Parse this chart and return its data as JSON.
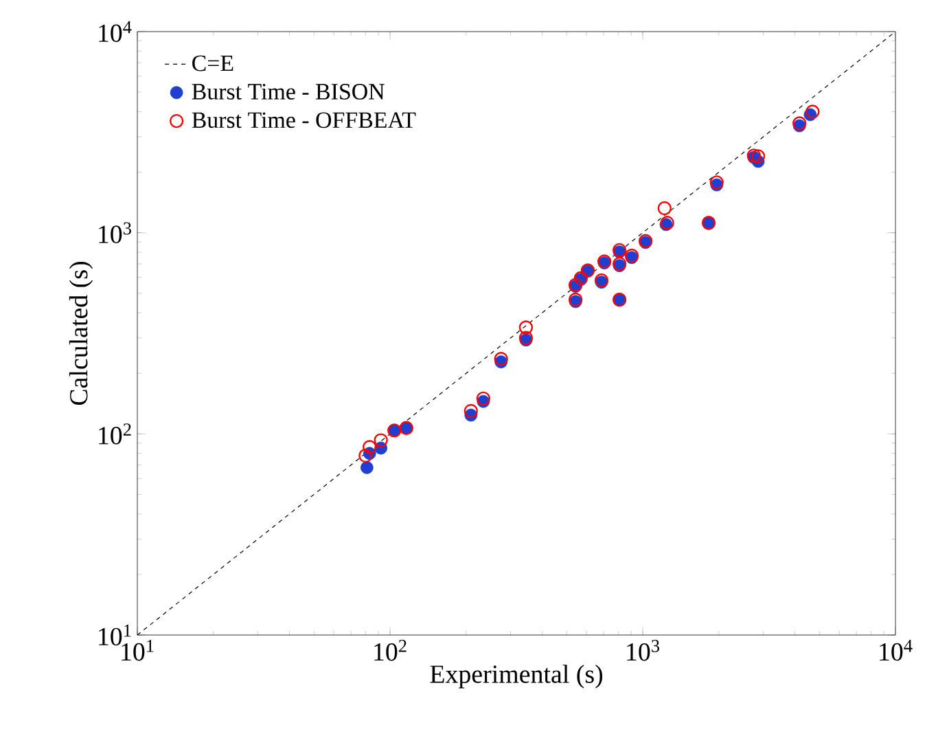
{
  "chart_data": {
    "type": "scatter",
    "xlabel": "Experimental (s)",
    "ylabel": "Calculated (s)",
    "log": "xy",
    "xlim": [
      10,
      10000
    ],
    "ylim": [
      10,
      10000
    ],
    "xticks": [
      {
        "value": 10,
        "label": "10$^{1}$"
      },
      {
        "value": 100,
        "label": "10$^{2}$"
      },
      {
        "value": 1000,
        "label": "10$^{3}$"
      },
      {
        "value": 10000,
        "label": "10$^{4}$"
      }
    ],
    "yticks": [
      {
        "value": 10,
        "label": "10$^{1}$"
      },
      {
        "value": 100,
        "label": "10$^{2}$"
      },
      {
        "value": 1000,
        "label": "10$^{3}$"
      },
      {
        "value": 10000,
        "label": "10$^{4}$"
      }
    ],
    "grid": false,
    "legend": "top left",
    "marker": "circle",
    "series": [
      {
        "name": "C=E",
        "type": "line",
        "color": "#000000",
        "line_style": "dashed",
        "marker": "none",
        "x": [
          10,
          10000
        ],
        "values": [
          10,
          10000
        ]
      },
      {
        "name": "Burst Time - BISON",
        "type": "scatter",
        "color": "#1f3fd0",
        "x": [
          81,
          83,
          92,
          104,
          116,
          209,
          234,
          275,
          345,
          542,
          542,
          569,
          606,
          687,
          705,
          809,
          809,
          809,
          905,
          1026,
          1237,
          1824,
          1963,
          2752,
          2862,
          4169,
          4600
        ],
        "values": [
          68,
          80,
          85,
          104,
          107,
          124,
          145,
          228,
          293,
          542,
          455,
          586,
          644,
          568,
          708,
          803,
          686,
          462,
          753,
          895,
          1099,
          1114,
          1730,
          2371,
          2263,
          3404,
          3864
        ]
      },
      {
        "name": "Burst Time - OFFBEAT",
        "type": "scatter",
        "color": "#ff0000",
        "x": [
          80,
          83,
          92,
          104,
          116,
          209,
          234,
          275,
          345,
          345,
          542,
          542,
          569,
          606,
          687,
          705,
          809,
          809,
          809,
          905,
          1026,
          1220,
          1250,
          1824,
          1963,
          2752,
          2862,
          4169,
          4700
        ],
        "values": [
          78,
          86,
          93,
          104,
          107,
          130,
          150,
          236,
          338,
          300,
          550,
          465,
          595,
          650,
          580,
          720,
          820,
          700,
          465,
          770,
          910,
          1324,
          1120,
          1120,
          1780,
          2420,
          2400,
          3500,
          4000
        ]
      }
    ]
  }
}
